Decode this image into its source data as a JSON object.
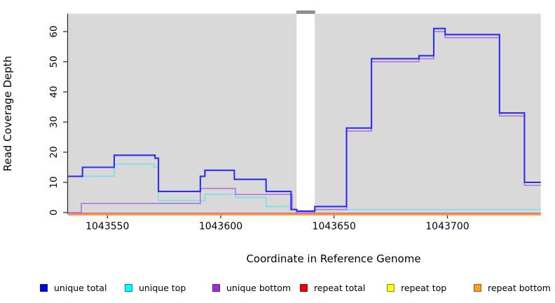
{
  "chart_data": {
    "type": "step",
    "xlabel": "Coordinate in Reference Genome",
    "ylabel": "Read Coverage Depth",
    "x_ticks": [
      1043550,
      1043600,
      1043650,
      1043700
    ],
    "x_tick_labels": [
      "1043550",
      "1043600",
      "1043650",
      "1043700"
    ],
    "y_ticks": [
      0,
      10,
      20,
      30,
      40,
      50,
      60
    ],
    "y_tick_labels": [
      "0",
      "10",
      "20",
      "30",
      "40",
      "50",
      "60"
    ],
    "xlim": [
      1043532.6,
      1043741.2
    ],
    "ylim": [
      0,
      66
    ],
    "plot_bg": "#d9d9d9",
    "outer_bg": "#ffffff",
    "axis_color": "#333333",
    "grid": "off",
    "legend_position": "bottom",
    "gap_region": {
      "x_start": 1043633.5,
      "x_end": 1043641.5,
      "color": "#ffffff",
      "top_cap_color": "#8c8c8c"
    },
    "series": [
      {
        "name": "unique total",
        "line_color": "#2e2ef0",
        "width": 2.1,
        "points": [
          [
            1043532.6,
            12
          ],
          [
            1043539,
            15
          ],
          [
            1043553,
            19
          ],
          [
            1043571,
            18
          ],
          [
            1043572.5,
            7
          ],
          [
            1043591,
            12
          ],
          [
            1043593,
            14
          ],
          [
            1043606,
            11
          ],
          [
            1043620,
            7
          ],
          [
            1043631,
            1
          ],
          [
            1043633.5,
            0.5
          ],
          [
            1043641.5,
            2
          ],
          [
            1043655.5,
            28
          ],
          [
            1043666.5,
            51
          ],
          [
            1043687.5,
            52
          ],
          [
            1043694,
            61
          ],
          [
            1043699,
            59
          ],
          [
            1043723,
            33
          ],
          [
            1043734,
            10
          ]
        ]
      },
      {
        "name": "unique top",
        "line_color": "#7be0e9",
        "width": 1.7,
        "points": [
          [
            1043532.6,
            12
          ],
          [
            1043553,
            16
          ],
          [
            1043570.5,
            15
          ],
          [
            1043572.5,
            4
          ],
          [
            1043593,
            6
          ],
          [
            1043606.5,
            5
          ],
          [
            1043620,
            2
          ],
          [
            1043631,
            1
          ],
          [
            1043633.5,
            0
          ],
          [
            1043641.5,
            1
          ]
        ]
      },
      {
        "name": "unique bottom",
        "line_color": "#b678dc",
        "width": 1.7,
        "points": [
          [
            1043532.6,
            0
          ],
          [
            1043538.5,
            3
          ],
          [
            1043591,
            8
          ],
          [
            1043606.5,
            6
          ],
          [
            1043631.5,
            1
          ],
          [
            1043633.5,
            0
          ],
          [
            1043641.5,
            1
          ],
          [
            1043655.5,
            27
          ],
          [
            1043666.5,
            50
          ],
          [
            1043687.5,
            51
          ],
          [
            1043694,
            60
          ],
          [
            1043699,
            58
          ],
          [
            1043723,
            32
          ],
          [
            1043734,
            9
          ]
        ]
      },
      {
        "name": "repeat total",
        "line_color": "#f5689a",
        "width": 1.6,
        "points": [
          [
            1043532.6,
            0
          ]
        ]
      },
      {
        "name": "repeat top",
        "line_color": "#f2ef6a",
        "width": 1.6,
        "points": [
          [
            1043532.6,
            0
          ]
        ]
      },
      {
        "name": "repeat bottom",
        "line_color": "#ff9d24",
        "width": 2.2,
        "points": [
          [
            1043532.6,
            0
          ]
        ]
      }
    ],
    "legend": [
      {
        "label": "unique total",
        "swatch_color": "#0000ee"
      },
      {
        "label": "unique top",
        "swatch_color": "#00ffff"
      },
      {
        "label": "unique bottom",
        "swatch_color": "#9a30d0"
      },
      {
        "label": "repeat total",
        "swatch_color": "#ee0000"
      },
      {
        "label": "repeat top",
        "swatch_color": "#ffff00"
      },
      {
        "label": "repeat bottom",
        "swatch_color": "#ffa11f"
      }
    ]
  }
}
